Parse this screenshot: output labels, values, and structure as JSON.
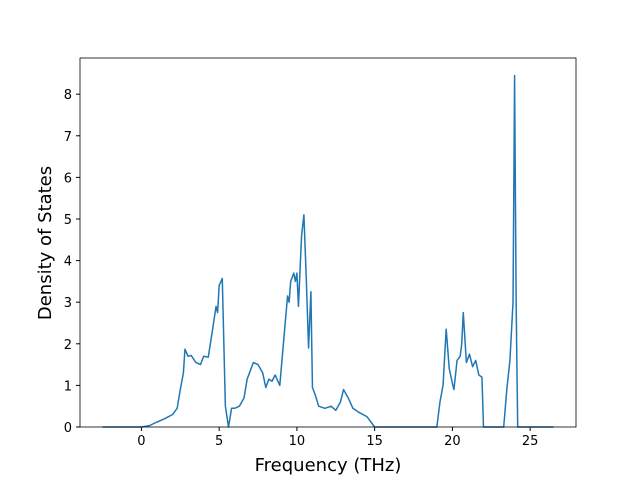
{
  "chart_data": {
    "type": "line",
    "x_label": "Frequency (THz)",
    "y_label": "Density of States",
    "x": [
      -2.5,
      0,
      0.5,
      1,
      1.5,
      2,
      2.3,
      2.5,
      2.7,
      2.8,
      3.0,
      3.2,
      3.5,
      3.8,
      4.0,
      4.3,
      4.6,
      4.8,
      4.9,
      5.0,
      5.2,
      5.4,
      5.6,
      5.8,
      6.0,
      6.3,
      6.6,
      6.8,
      7.0,
      7.2,
      7.5,
      7.8,
      8.0,
      8.2,
      8.4,
      8.6,
      8.9,
      9.2,
      9.4,
      9.5,
      9.6,
      9.8,
      9.9,
      10.0,
      10.1,
      10.3,
      10.45,
      10.6,
      10.75,
      10.9,
      11.0,
      11.2,
      11.4,
      11.8,
      12.2,
      12.5,
      12.8,
      13.0,
      13.3,
      13.6,
      14.0,
      14.5,
      15.0,
      15.2,
      16,
      19,
      19.2,
      19.4,
      19.6,
      19.8,
      20.0,
      20.1,
      20.3,
      20.5,
      20.6,
      20.7,
      20.9,
      21.1,
      21.3,
      21.5,
      21.7,
      21.9,
      22,
      23.3,
      23.5,
      23.7,
      23.9,
      24.0,
      24.1,
      24.2,
      26.5
    ],
    "series": [
      {
        "name": "DOS",
        "color": "#1f77b4",
        "values": [
          0,
          0,
          0.03,
          0.12,
          0.2,
          0.3,
          0.45,
          0.9,
          1.3,
          1.87,
          1.7,
          1.72,
          1.55,
          1.5,
          1.7,
          1.68,
          2.4,
          2.9,
          2.75,
          3.4,
          3.57,
          0.5,
          0,
          0.45,
          0.45,
          0.5,
          0.7,
          1.15,
          1.35,
          1.55,
          1.5,
          1.3,
          0.95,
          1.15,
          1.1,
          1.25,
          1.0,
          2.3,
          3.15,
          3.0,
          3.5,
          3.7,
          3.5,
          3.7,
          2.9,
          4.6,
          5.1,
          3.6,
          1.9,
          3.25,
          0.95,
          0.75,
          0.5,
          0.45,
          0.5,
          0.4,
          0.6,
          0.9,
          0.7,
          0.45,
          0.35,
          0.25,
          0,
          0,
          0,
          0,
          0.6,
          1.0,
          2.35,
          1.4,
          1.05,
          0.9,
          1.6,
          1.7,
          2.0,
          2.75,
          1.55,
          1.75,
          1.45,
          1.6,
          1.25,
          1.2,
          0,
          0,
          0.9,
          1.6,
          3.0,
          8.45,
          3.0,
          0,
          0
        ]
      }
    ],
    "xlim": [
      -3.95,
      27.95
    ],
    "ylim": [
      0,
      8.87
    ],
    "xticks": [
      0,
      5,
      10,
      15,
      20,
      25
    ],
    "yticks": [
      0,
      1,
      2,
      3,
      4,
      5,
      6,
      7,
      8
    ]
  }
}
